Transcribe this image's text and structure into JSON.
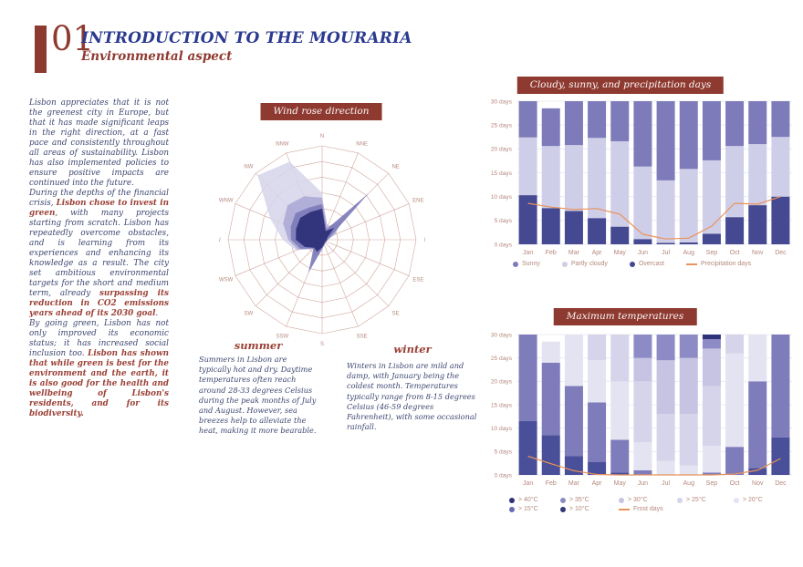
{
  "header": {
    "chapter": "01",
    "title": "INTRODUCTION TO THE MOURARIA",
    "subtitle": "Environmental aspect"
  },
  "intro": {
    "paragraphs": [
      [
        {
          "t": "Lisbon appreciates that it is not the greenest city in Europe, but that it has made significant leaps in the right direction, at a fast pace and consistently throughout all areas of sustainability. Lisbon has also implemented policies to ensure positive impacts are continued into the future.",
          "hl": false
        }
      ],
      [
        {
          "t": "During the depths of the financial crisis, ",
          "hl": false
        },
        {
          "t": "Lisbon chose to invest in green",
          "hl": true
        },
        {
          "t": ", with many projects starting from scratch. Lisbon has repeatedly overcome obstacles, and is learning from its experiences and enhancing its knowledge as a result. The city set ambitious environmental targets for the short and medium term, already ",
          "hl": false
        },
        {
          "t": "surpassing its reduction in CO2 emissions years ahead of its 2030 goal",
          "hl": true
        },
        {
          "t": ".",
          "hl": false
        }
      ],
      [
        {
          "t": "By going green, Lisbon has not only improved its economic status; it has increased social inclusion too. ",
          "hl": false
        },
        {
          "t": "Lisbon has shown that while green is best for the environment and the earth, it is also good for the health and wellbeing of Lisbon's residents, and for its biodiversity.",
          "hl": true
        }
      ]
    ]
  },
  "windrose": {
    "title": "Wind rose direction",
    "directions": [
      "N",
      "NNE",
      "NE",
      "ENE",
      "E",
      "ESE",
      "SE",
      "SSE",
      "S",
      "SSW",
      "SW",
      "WSW",
      "W",
      "WNW",
      "NW",
      "NNW"
    ],
    "rings": 6,
    "grid_color": "#cfa79e",
    "label_color": "#b5887e",
    "series": [
      {
        "name": "lightest",
        "color": "#d6d5eb",
        "opacity": 0.85,
        "values": [
          0.5,
          0.08,
          0.06,
          0.04,
          0.03,
          0.03,
          0.03,
          0.04,
          0.06,
          0.1,
          0.08,
          0.3,
          0.42,
          0.6,
          0.97,
          0.9
        ]
      },
      {
        "name": "light",
        "color": "#a9a7d3",
        "opacity": 0.85,
        "values": [
          0.45,
          0.15,
          0.3,
          0.15,
          0.06,
          0.05,
          0.05,
          0.06,
          0.1,
          0.2,
          0.14,
          0.28,
          0.36,
          0.45,
          0.52,
          0.5
        ]
      },
      {
        "name": "medium",
        "color": "#7c7ab9",
        "opacity": 0.9,
        "values": [
          0.38,
          0.12,
          0.7,
          0.1,
          0.06,
          0.05,
          0.05,
          0.06,
          0.1,
          0.38,
          0.13,
          0.25,
          0.33,
          0.36,
          0.4,
          0.37
        ]
      },
      {
        "name": "dark",
        "color": "#2d3078",
        "opacity": 0.95,
        "values": [
          0.33,
          0.1,
          0.18,
          0.06,
          0.05,
          0.04,
          0.04,
          0.05,
          0.08,
          0.14,
          0.12,
          0.2,
          0.28,
          0.3,
          0.33,
          0.32
        ]
      }
    ]
  },
  "seasons": {
    "summer": {
      "heading": "summer",
      "text": "Summers in Lisbon are typically hot and dry. Daytime temperatures often reach around 28-33 degrees Celsius during the peak months of July and August. However, sea breezes help to alleviate the heat, making it more bearable."
    },
    "winter": {
      "heading": "winter",
      "text": "Winters in Lisbon are mild and damp, with January being the coldest month. Temperatures typically range from 8-15 degrees Celsius (46-59 degrees Fahrenheit), with some occasional rainfall."
    }
  },
  "chart_data": [
    {
      "type": "bar",
      "subtype": "stacked-with-line",
      "title": "Cloudy, sunny, and precipitation days",
      "categories": [
        "Jan",
        "Feb",
        "Mar",
        "Apr",
        "May",
        "Jun",
        "Jul",
        "Aug",
        "Sep",
        "Oct",
        "Nov",
        "Dec"
      ],
      "ylim": [
        0,
        30
      ],
      "y_ticks": [
        "30 days",
        "25 days",
        "20 days",
        "15 days",
        "10 days",
        "5 days",
        "0 days"
      ],
      "grid": true,
      "series": [
        {
          "name": "Overcast",
          "color": "#444992",
          "values": [
            10.3,
            7.6,
            7.0,
            5.5,
            3.7,
            1.1,
            0.3,
            0.4,
            2.2,
            5.7,
            8.2,
            10.0
          ]
        },
        {
          "name": "Partly cloudy",
          "color": "#cfcee8",
          "values": [
            12.1,
            13.0,
            13.8,
            16.8,
            17.9,
            15.2,
            13.1,
            15.4,
            15.4,
            14.9,
            12.8,
            12.5
          ]
        },
        {
          "name": "Sunny",
          "color": "#7d7bb9",
          "values": [
            7.6,
            7.9,
            9.2,
            7.7,
            8.4,
            13.7,
            16.6,
            14.2,
            12.4,
            9.4,
            9.0,
            7.5
          ]
        }
      ],
      "line": {
        "name": "Precipitation days",
        "color": "#e8935c",
        "values": [
          8.6,
          7.8,
          7.3,
          7.5,
          6.3,
          2.1,
          1.1,
          1.3,
          3.8,
          8.6,
          8.4,
          10.0
        ]
      },
      "legend": [
        {
          "label": "Sunny",
          "color": "#7d7bb9",
          "type": "dot"
        },
        {
          "label": "Partly cloudy",
          "color": "#cfcee8",
          "type": "dot"
        },
        {
          "label": "Overcast",
          "color": "#444992",
          "type": "dot"
        },
        {
          "label": "Precipitation days",
          "color": "#e8935c",
          "type": "line"
        }
      ]
    },
    {
      "type": "bar",
      "subtype": "stacked-with-line",
      "title": "Maximum temperatures",
      "categories": [
        "Jan",
        "Feb",
        "Mar",
        "Apr",
        "May",
        "Jun",
        "Jul",
        "Aug",
        "Sep",
        "Oct",
        "Nov",
        "Dec"
      ],
      "ylim": [
        0,
        30
      ],
      "y_ticks": [
        "30 days",
        "25 days",
        "20 days",
        "15 days",
        "10 days",
        "5 days",
        "0 days"
      ],
      "grid": true,
      "series": [
        {
          "name": "> 10°C",
          "color": "#4a4f99",
          "values": [
            11.5,
            8.5,
            4.0,
            2.8,
            0.5,
            0,
            0,
            0,
            0,
            0,
            1.5,
            8.0
          ]
        },
        {
          "name": "> 15°C",
          "color": "#7e7cbb",
          "values": [
            18.5,
            15.5,
            15.0,
            12.7,
            7.0,
            1.0,
            0,
            0,
            0.5,
            6.0,
            18.5,
            22.0
          ]
        },
        {
          "name": "> 20°C",
          "color": "#e4e3f1",
          "values": [
            0,
            4.5,
            11.0,
            9.0,
            12.5,
            6.0,
            3.0,
            2.0,
            5.7,
            20.0,
            10.0,
            0
          ]
        },
        {
          "name": "> 25°C",
          "color": "#d5d4ea",
          "values": [
            0,
            0,
            0,
            5.5,
            10.0,
            13.0,
            10.0,
            11.0,
            12.8,
            4.0,
            0,
            0
          ]
        },
        {
          "name": "> 30°C",
          "color": "#c6c4e2",
          "values": [
            0,
            0,
            0,
            0,
            0,
            5.0,
            11.5,
            12.0,
            8.0,
            0,
            0,
            0
          ]
        },
        {
          "name": "> 35°C",
          "color": "#8d8bc6",
          "values": [
            0,
            0,
            0,
            0,
            0,
            5.0,
            5.5,
            5.0,
            2.0,
            0,
            0,
            0
          ]
        },
        {
          "name": "> 40°C",
          "color": "#2e3279",
          "values": [
            0,
            0,
            0,
            0,
            0,
            0,
            0,
            0,
            1.0,
            0,
            0,
            0
          ]
        }
      ],
      "line": {
        "name": "Frost days",
        "color": "#e8935c",
        "values": [
          4.0,
          2.4,
          0.9,
          0.1,
          0,
          0,
          0,
          0,
          0,
          0.2,
          1.0,
          3.5
        ]
      },
      "legend_rows": [
        [
          {
            "label": "> 40°C",
            "color": "#2e3279",
            "type": "dot"
          },
          {
            "label": "> 35°C",
            "color": "#8d8bc6",
            "type": "dot"
          },
          {
            "label": "> 30°C",
            "color": "#c6c4e2",
            "type": "dot"
          },
          {
            "label": "> 25°C",
            "color": "#d5d4ea",
            "type": "dot"
          },
          {
            "label": "> 20°C",
            "color": "#e4e3f1",
            "type": "dot"
          }
        ],
        [
          {
            "label": "> 15°C",
            "color": "#666bb0",
            "type": "dot"
          },
          {
            "label": "> 10°C",
            "color": "#343879",
            "type": "dot"
          },
          {
            "label": "Frost days",
            "color": "#e8935c",
            "type": "line"
          }
        ]
      ]
    }
  ],
  "style_colors": {
    "maroon": "#8e3a31",
    "title_navy": "#2b3a8f",
    "body_navy": "#3d4670",
    "highlight_maroon": "#9a4036",
    "axis_text": "#b5887e",
    "chart_grid": "#ececf3"
  }
}
